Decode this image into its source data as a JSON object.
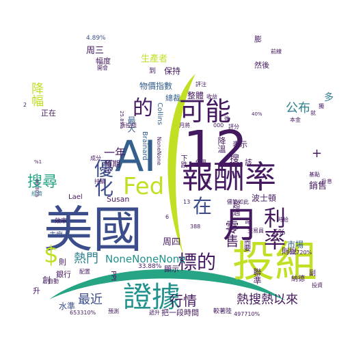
{
  "palette": {
    "dark_purple": "#44195f",
    "indigo": "#3b4d8a",
    "blue": "#35608d",
    "teal_blue": "#2c7f8e",
    "teal": "#21918c",
    "green": "#25a583",
    "lime_green": "#6dcd59",
    "yellow_green": "#c2df23",
    "background": "#ffffff"
  },
  "decorations": {
    "crescent_shape": "yellow-green arc",
    "bottom_arc_shape": "green arc"
  },
  "words": [
    {
      "text": "美國",
      "color": "#3b4d8a"
    },
    {
      "text": "投組",
      "color": "#c2df23"
    },
    {
      "text": "12",
      "color": "#44195f"
    },
    {
      "text": "AI",
      "color": "#35608d"
    },
    {
      "text": "報酬率",
      "color": "#44195f"
    },
    {
      "text": "證據",
      "color": "#21918c"
    },
    {
      "text": "月",
      "color": "#44195f"
    },
    {
      "text": "可能",
      "color": "#44195f"
    },
    {
      "text": "Fed",
      "color": "#c2df23"
    },
    {
      "text": "利率",
      "color": "#44195f"
    },
    {
      "text": "優化",
      "color": "#3b4d8a"
    },
    {
      "text": "的",
      "color": "#44195f"
    },
    {
      "text": "$",
      "color": "#c2df23"
    },
    {
      "text": "在",
      "color": "#3b4d8a"
    },
    {
      "text": "標的",
      "color": "#44195f"
    },
    {
      "text": "熱搜熱以來",
      "color": "#44195f"
    },
    {
      "text": "NoneNoneNone",
      "color": "#21918c"
    },
    {
      "text": "熱門",
      "color": "#2c7f8e"
    },
    {
      "text": "行情",
      "color": "#44195f"
    },
    {
      "text": "最近",
      "color": "#3b4d8a"
    },
    {
      "text": "搜尋",
      "color": "#25a583"
    },
    {
      "text": "公布",
      "color": "#2c7f8e"
    },
    {
      "text": "零售",
      "color": "#44195f"
    },
    {
      "text": "一年",
      "color": "#44195f"
    },
    {
      "text": "降幅",
      "color": "#c2df23"
    },
    {
      "text": "生產者",
      "color": "#c2df23"
    },
    {
      "text": "物價指數",
      "color": "#35608d"
    },
    {
      "text": "周三",
      "color": "#44195f"
    },
    {
      "text": "周四",
      "color": "#44195f"
    },
    {
      "text": "銷售",
      "color": "#44195f"
    },
    {
      "text": "市場",
      "color": "#35608d"
    },
    {
      "text": "整體",
      "color": "#44195f"
    },
    {
      "text": "最大",
      "color": "#35608d"
    },
    {
      "text": "預期",
      "color": "#44195f"
    },
    {
      "text": "波士頓",
      "color": "#44195f"
    },
    {
      "text": "表示",
      "color": "#44195f"
    },
    {
      "text": "降溫",
      "color": "#44195f"
    },
    {
      "text": "保持",
      "color": "#44195f"
    },
    {
      "text": "總裁",
      "color": "#35608d"
    },
    {
      "text": "幅度",
      "color": "#44195f"
    },
    {
      "text": "正在",
      "color": "#44195f"
    },
    {
      "text": "水準",
      "color": "#3b4d8a"
    },
    {
      "text": "銀行",
      "color": "#44195f"
    },
    {
      "text": "聯準",
      "color": "#44195f"
    },
    {
      "text": "需要",
      "color": "#44195f"
    },
    {
      "text": "則說",
      "color": "#44195f"
    },
    {
      "text": "則",
      "color": "#44195f"
    },
    {
      "text": "創",
      "color": "#44195f"
    },
    {
      "text": "升",
      "color": "#44195f"
    },
    {
      "text": "Susan",
      "color": "#44195f"
    },
    {
      "text": "Collins",
      "color": "#35608d"
    },
    {
      "text": "Lael",
      "color": "#44195f"
    },
    {
      "text": "Brainard",
      "color": "#35608d"
    },
    {
      "text": "PPI",
      "color": "#44195f"
    },
    {
      "text": "5%",
      "color": "#44195f"
    },
    {
      "text": "33.88%",
      "color": "#44195f"
    },
    {
      "text": "4.89%",
      "color": "#3b4d8a"
    },
    {
      "text": "顯示",
      "color": "#44195f"
    },
    {
      "text": "到",
      "color": "#44195f"
    },
    {
      "text": "然後",
      "color": "#44195f"
    },
    {
      "text": "膨",
      "color": "#44195f"
    },
    {
      "text": "該",
      "color": "#44195f"
    },
    {
      "text": "主席",
      "color": "#3b4d8a"
    },
    {
      "text": "效率",
      "color": "#44195f"
    },
    {
      "text": "搜",
      "color": "#44195f"
    },
    {
      "text": "把一段時間",
      "color": "#44195f"
    },
    {
      "text": "較著陸",
      "color": "#44195f"
    },
    {
      "text": "納德",
      "color": "#44195f"
    },
    {
      "text": "副",
      "color": "#44195f"
    },
    {
      "text": "+",
      "color": "#44195f"
    },
    {
      "text": "多",
      "color": "#2c7f8e"
    },
    {
      "text": "超過",
      "color": "#44195f"
    },
    {
      "text": "路",
      "color": "#44195f"
    },
    {
      "text": "交易員",
      "color": "#44195f"
    },
    {
      "text": "儘管如此",
      "color": "#44195f"
    },
    {
      "text": "時給",
      "color": "#44195f"
    },
    {
      "text": "評分",
      "color": "#44195f"
    },
    {
      "text": "000",
      "color": "#44195f"
    },
    {
      "text": "月將",
      "color": "#44195f"
    },
    {
      "text": "收益",
      "color": "#44195f"
    },
    {
      "text": "前線",
      "color": "#44195f"
    },
    {
      "text": "本金",
      "color": "#44195f"
    },
    {
      "text": "開會",
      "color": "#44195f"
    },
    {
      "text": "經濟",
      "color": "#2c7f8e"
    },
    {
      "text": "基點",
      "color": "#44195f"
    },
    {
      "text": "升息",
      "color": "#44195f"
    },
    {
      "text": "自動",
      "color": "#44195f"
    },
    {
      "text": "配置",
      "color": "#44195f"
    },
    {
      "text": "預測",
      "color": "#44195f"
    },
    {
      "text": "遞升",
      "color": "#44195f"
    },
    {
      "text": "投資",
      "color": "#44195f"
    },
    {
      "text": "持續",
      "color": "#44195f"
    },
    {
      "text": "成分",
      "color": "#44195f"
    },
    {
      "text": "所投組",
      "color": "#44195f"
    },
    {
      "text": "使用",
      "color": "#44195f"
    },
    {
      "text": "10",
      "color": "#44195f"
    },
    {
      "text": "13",
      "color": "#44195f"
    },
    {
      "text": "2",
      "color": "#44195f"
    },
    {
      "text": "6",
      "color": "#44195f"
    },
    {
      "text": "388",
      "color": "#44195f"
    },
    {
      "text": "653310%",
      "color": "#44195f"
    },
    {
      "text": "497710%",
      "color": "#44195f"
    },
    {
      "text": "302720%",
      "color": "#44195f"
    },
    {
      "text": "25.89%",
      "color": "#44195f"
    },
    {
      "text": "89.80%",
      "color": "#44195f"
    },
    {
      "text": "40%",
      "color": "#44195f"
    },
    {
      "text": "%1",
      "color": "#44195f"
    },
    {
      "text": "NoneNone",
      "color": "#44195f"
    },
    {
      "text": "獨",
      "color": "#44195f"
    },
    {
      "text": "就",
      "color": "#44195f"
    },
    {
      "text": "後",
      "color": "#44195f"
    },
    {
      "text": "評注",
      "color": "#44195f"
    },
    {
      "text": "下跌",
      "color": "#44195f"
    },
    {
      "text": "示",
      "color": "#44195f"
    }
  ]
}
